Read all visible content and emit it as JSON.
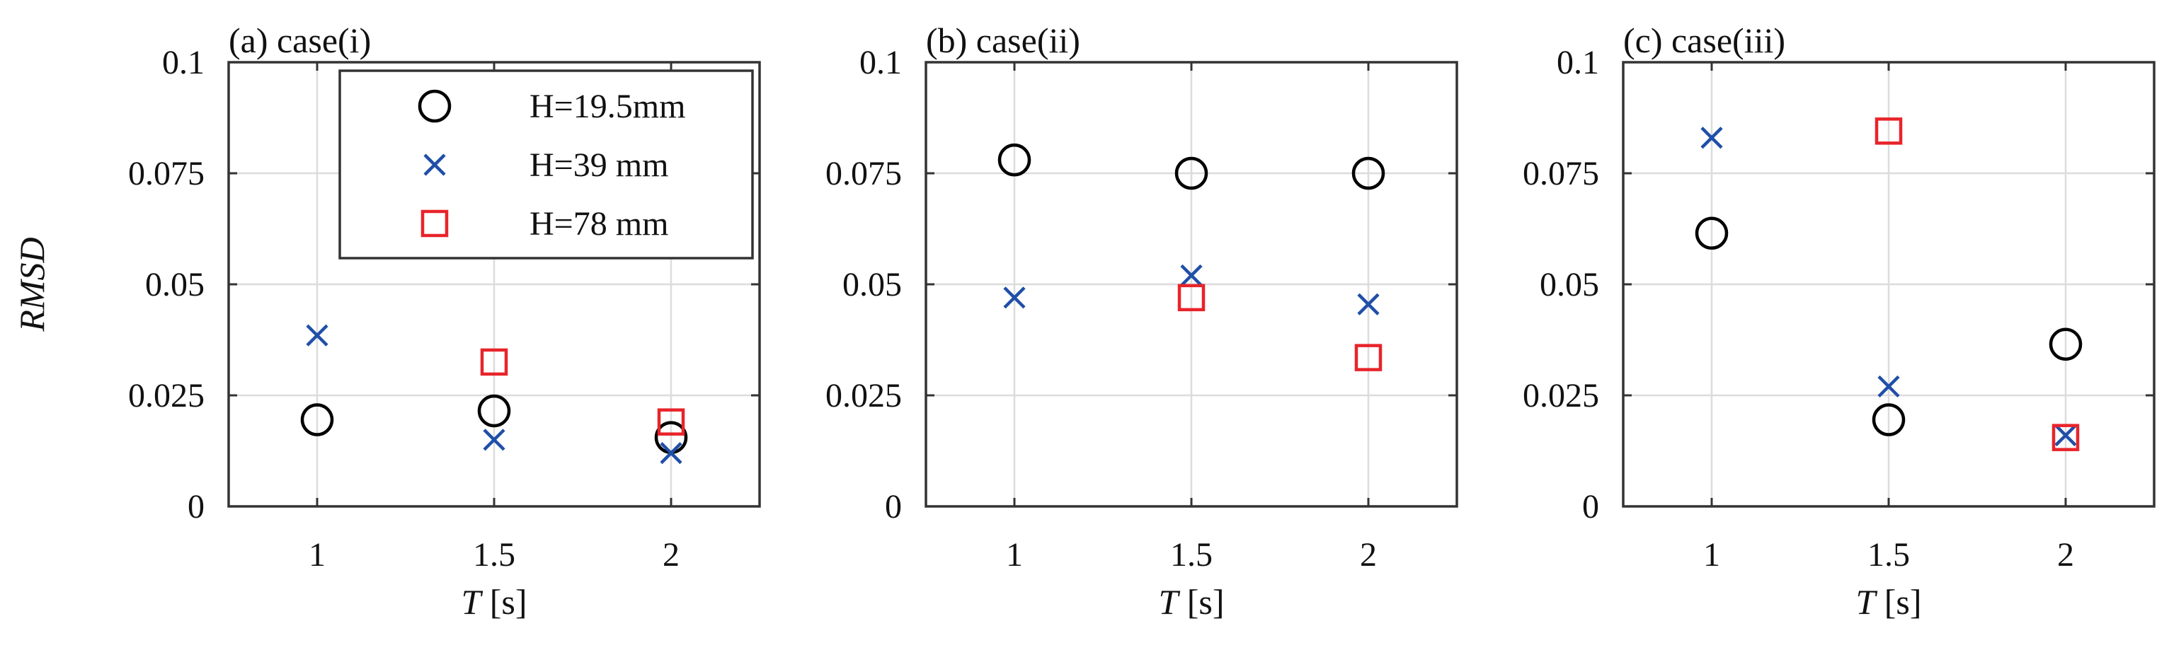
{
  "figure": {
    "ylabel": "RMSD",
    "xlabel_symbol": "T",
    "xlabel_unit": " [s]"
  },
  "legend": {
    "location": "top-right of panel (a)",
    "entries": [
      {
        "series": "H=19.5mm",
        "label": "H=19.5mm"
      },
      {
        "series": "H=39 mm",
        "label": "H=39 mm"
      },
      {
        "series": "H=78 mm",
        "label": "H=78 mm"
      }
    ]
  },
  "series_styles": {
    "H=19.5mm": {
      "marker": "circle",
      "color": "#000000"
    },
    "H=39 mm": {
      "marker": "x",
      "color": "#1f4fa8"
    },
    "H=78 mm": {
      "marker": "square",
      "color": "#e8242a"
    }
  },
  "chart_data": [
    {
      "type": "scatter",
      "title": "(a) case(i)",
      "xlabel": "T [s]",
      "ylabel": "RMSD",
      "xlim": [
        0.75,
        2.25
      ],
      "ylim": [
        0,
        0.1
      ],
      "xticks": [
        1,
        1.5,
        2
      ],
      "xtick_labels": [
        "1",
        "1.5",
        "2"
      ],
      "yticks": [
        0,
        0.025,
        0.05,
        0.075,
        0.1
      ],
      "ytick_labels": [
        "0",
        "0.025",
        "0.05",
        "0.075",
        "0.1"
      ],
      "grid": true,
      "x": [
        1,
        1.5,
        2
      ],
      "series": [
        {
          "name": "H=19.5mm",
          "values": [
            0.0195,
            0.0215,
            0.0155
          ]
        },
        {
          "name": "H=39 mm",
          "values": [
            0.0385,
            0.015,
            0.012
          ]
        },
        {
          "name": "H=78 mm",
          "values": [
            null,
            0.0325,
            0.019
          ]
        }
      ]
    },
    {
      "type": "scatter",
      "title": "(b) case(ii)",
      "xlabel": "T [s]",
      "ylabel": "",
      "xlim": [
        0.75,
        2.25
      ],
      "ylim": [
        0,
        0.1
      ],
      "xticks": [
        1,
        1.5,
        2
      ],
      "xtick_labels": [
        "1",
        "1.5",
        "2"
      ],
      "yticks": [
        0,
        0.025,
        0.05,
        0.075,
        0.1
      ],
      "ytick_labels": [
        "0",
        "0.025",
        "0.05",
        "0.075",
        "0.1"
      ],
      "grid": true,
      "x": [
        1,
        1.5,
        2
      ],
      "series": [
        {
          "name": "H=19.5mm",
          "values": [
            0.078,
            0.075,
            0.075
          ]
        },
        {
          "name": "H=39 mm",
          "values": [
            0.047,
            0.052,
            0.0455
          ]
        },
        {
          "name": "H=78 mm",
          "values": [
            null,
            0.047,
            0.0335
          ]
        }
      ]
    },
    {
      "type": "scatter",
      "title": "(c) case(iii)",
      "xlabel": "T [s]",
      "ylabel": "",
      "xlim": [
        0.75,
        2.25
      ],
      "ylim": [
        0,
        0.1
      ],
      "xticks": [
        1,
        1.5,
        2
      ],
      "xtick_labels": [
        "1",
        "1.5",
        "2"
      ],
      "yticks": [
        0,
        0.025,
        0.05,
        0.075,
        0.1
      ],
      "ytick_labels": [
        "0",
        "0.025",
        "0.05",
        "0.075",
        "0.1"
      ],
      "grid": true,
      "x": [
        1,
        1.5,
        2
      ],
      "series": [
        {
          "name": "H=19.5mm",
          "values": [
            0.0615,
            0.0195,
            0.0365
          ]
        },
        {
          "name": "H=39 mm",
          "values": [
            0.083,
            0.027,
            0.016
          ]
        },
        {
          "name": "H=78 mm",
          "values": [
            null,
            0.0845,
            0.0155
          ]
        }
      ]
    }
  ]
}
